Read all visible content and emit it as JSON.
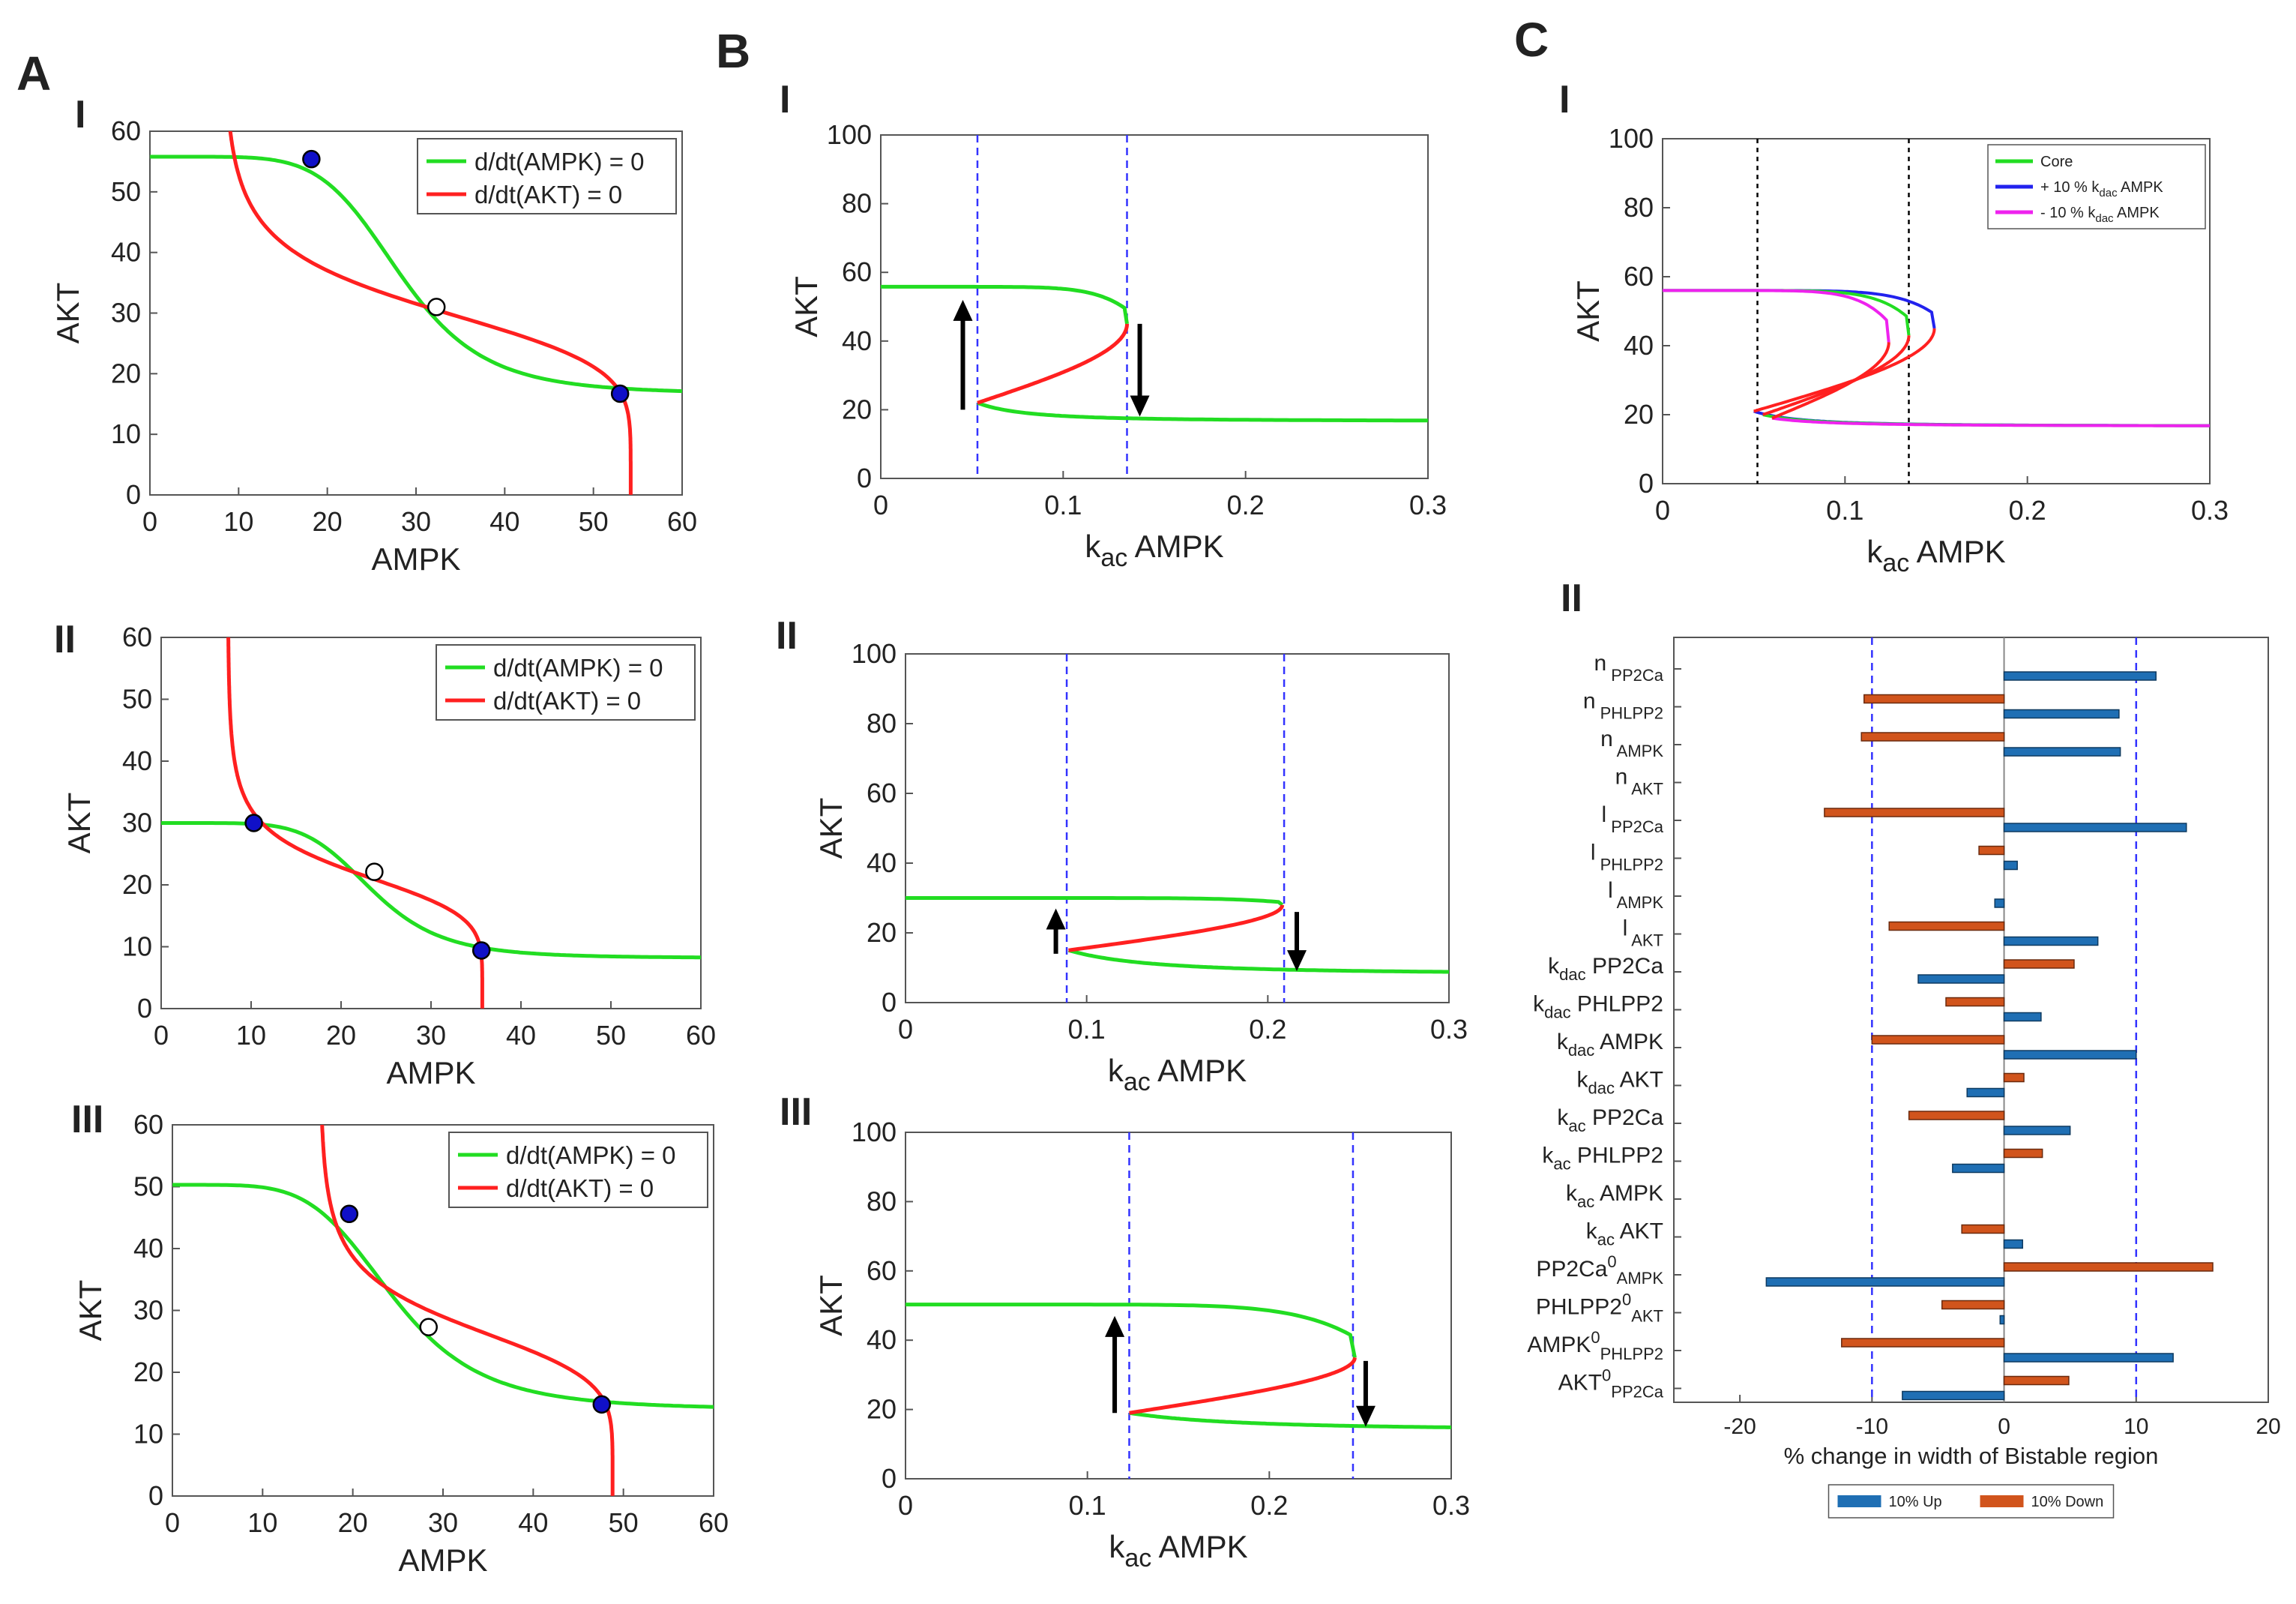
{
  "figure": {
    "panel_letters": {
      "A": "A",
      "B": "B",
      "C": "C"
    },
    "colors": {
      "nullcline_ampk": "#22dd22",
      "nullcline_akt": "#ff2020",
      "stable_point": "#1010c8",
      "bif_stable": "#22dd22",
      "bif_unstable": "#ff2020",
      "threshold_line": "#3333ff",
      "up_bar": "#1f6fb4",
      "down_bar": "#d1541c",
      "plus10": "#2222ee",
      "minus10": "#ee22ee"
    }
  },
  "chart_data": [
    {
      "id": "A-I",
      "type": "line",
      "roman": "I",
      "title": "",
      "xlabel": "AMPK",
      "ylabel": "AKT",
      "xlim": [
        0,
        60
      ],
      "ylim": [
        0,
        60
      ],
      "xticks": [
        "0",
        "10",
        "20",
        "30",
        "40",
        "50",
        "60"
      ],
      "yticks": [
        "0",
        "10",
        "20",
        "30",
        "40",
        "50",
        "60"
      ],
      "legend": [
        "d/dt(AMPK) = 0",
        "d/dt(AKT) = 0"
      ],
      "legend_position": "top-right",
      "ampk_nullcline": {
        "low": 16.7,
        "high": 55.8,
        "mid": 28.3,
        "n": 6
      },
      "akt_nullcline": {
        "ampk_min": 8.2,
        "ampk_max": 54.2,
        "mid_akt": 31.0,
        "n": 6
      },
      "stable_points": [
        [
          18.2,
          55.4
        ],
        [
          53.0,
          16.7
        ]
      ],
      "unstable_points": [
        [
          32.3,
          31.0
        ]
      ]
    },
    {
      "id": "A-II",
      "type": "line",
      "roman": "II",
      "title": "",
      "xlabel": "AMPK",
      "ylabel": "AKT",
      "xlim": [
        0,
        60
      ],
      "ylim": [
        0,
        60
      ],
      "xticks": [
        "0",
        "10",
        "20",
        "30",
        "40",
        "50",
        "60"
      ],
      "yticks": [
        "0",
        "10",
        "20",
        "30",
        "40",
        "50",
        "60"
      ],
      "legend": [
        "d/dt(AMPK) = 0",
        "d/dt(AKT) = 0"
      ],
      "legend_position": "top-right",
      "ampk_nullcline": {
        "low": 8.2,
        "high": 30.0,
        "mid": 23.5,
        "n": 6
      },
      "akt_nullcline": {
        "ampk_min": 7.4,
        "ampk_max": 35.7,
        "mid_akt": 22.0,
        "n": 6
      },
      "stable_points": [
        [
          10.3,
          30.0
        ],
        [
          35.6,
          9.4
        ]
      ],
      "unstable_points": [
        [
          23.7,
          22.1
        ]
      ]
    },
    {
      "id": "A-III",
      "type": "line",
      "roman": "III",
      "title": "",
      "xlabel": "AMPK",
      "ylabel": "AKT",
      "xlim": [
        0,
        60
      ],
      "ylim": [
        0,
        60
      ],
      "xticks": [
        "0",
        "10",
        "20",
        "30",
        "40",
        "50",
        "60"
      ],
      "yticks": [
        "0",
        "10",
        "20",
        "30",
        "40",
        "50",
        "60"
      ],
      "legend": [
        "d/dt(AMPK) = 0",
        "d/dt(AKT) = 0"
      ],
      "legend_position": "top-right",
      "ampk_nullcline": {
        "low": 14.0,
        "high": 50.3,
        "mid": 24.5,
        "n": 5
      },
      "akt_nullcline": {
        "ampk_min": 16.3,
        "ampk_max": 48.8,
        "mid_akt": 27.5,
        "n": 6
      },
      "stable_points": [
        [
          19.6,
          45.6
        ],
        [
          47.6,
          14.8
        ]
      ],
      "unstable_points": [
        [
          28.4,
          27.3
        ]
      ]
    },
    {
      "id": "B-I",
      "type": "line",
      "roman": "I",
      "xlabel_main": "k",
      "xlabel_sub": "ac",
      "xlabel_rest": " AMPK",
      "ylabel": "AKT",
      "xlim": [
        0,
        0.3
      ],
      "ylim": [
        0,
        100
      ],
      "xticks": [
        "0",
        "0.1",
        "0.2",
        "0.3"
      ],
      "yticks": [
        "0",
        "20",
        "40",
        "60",
        "80",
        "100"
      ],
      "upper": 55.8,
      "lower": 16.7,
      "sn1": [
        0.053,
        22.0
      ],
      "sn2": [
        0.135,
        45.0
      ],
      "thresholds": [
        0.053,
        0.135
      ],
      "arrows": [
        {
          "x": 0.045,
          "from": 20,
          "to": 52
        },
        {
          "x": 0.142,
          "from": 45,
          "to": 18
        }
      ]
    },
    {
      "id": "B-II",
      "type": "line",
      "roman": "II",
      "xlabel_main": "k",
      "xlabel_sub": "ac",
      "xlabel_rest": " AMPK",
      "ylabel": "AKT",
      "xlim": [
        0,
        0.3
      ],
      "ylim": [
        0,
        100
      ],
      "xticks": [
        "0",
        "0.1",
        "0.2",
        "0.3"
      ],
      "yticks": [
        "0",
        "20",
        "40",
        "60",
        "80",
        "100"
      ],
      "upper": 30.0,
      "lower": 8.2,
      "sn1": [
        0.09,
        15.0
      ],
      "sn2": [
        0.208,
        28.0
      ],
      "thresholds": [
        0.089,
        0.209
      ],
      "arrows": [
        {
          "x": 0.083,
          "from": 14,
          "to": 27
        },
        {
          "x": 0.216,
          "from": 26,
          "to": 9
        }
      ]
    },
    {
      "id": "B-III",
      "type": "line",
      "roman": "III",
      "xlabel_main": "k",
      "xlabel_sub": "ac",
      "xlabel_rest": " AMPK",
      "ylabel": "AKT",
      "xlim": [
        0,
        0.3
      ],
      "ylim": [
        0,
        100
      ],
      "xticks": [
        "0",
        "0.1",
        "0.2",
        "0.3"
      ],
      "yticks": [
        "0",
        "20",
        "40",
        "60",
        "80",
        "100"
      ],
      "upper": 50.3,
      "lower": 14.0,
      "sn1": [
        0.123,
        19.0
      ],
      "sn2": [
        0.247,
        35.0
      ],
      "thresholds": [
        0.123,
        0.246
      ],
      "arrows": [
        {
          "x": 0.115,
          "from": 19,
          "to": 47
        },
        {
          "x": 0.253,
          "from": 34,
          "to": 15
        }
      ]
    },
    {
      "id": "C-I",
      "type": "line",
      "roman": "I",
      "xlabel_main": "k",
      "xlabel_sub": "ac",
      "xlabel_rest": " AMPK",
      "ylabel": "AKT",
      "xlim": [
        0,
        0.3
      ],
      "ylim": [
        0,
        100
      ],
      "xticks": [
        "0",
        "0.1",
        "0.2",
        "0.3"
      ],
      "yticks": [
        "0",
        "20",
        "40",
        "60",
        "80",
        "100"
      ],
      "legend": [
        {
          "text": "Core",
          "color": "#22dd22"
        },
        {
          "text": "+ 10 % k",
          "sub": "dac",
          "rest": " AMPK",
          "color": "#2222ee"
        },
        {
          "text": "- 10 % k",
          "sub": "dac",
          "rest": " AMPK",
          "color": "#ee22ee"
        }
      ],
      "legend_position": "top-right",
      "thresholds": [
        0.052,
        0.135
      ],
      "series": [
        {
          "name": "Core",
          "upper": 56.0,
          "lower": 16.7,
          "sn1": [
            0.055,
            20.0
          ],
          "sn2": [
            0.135,
            43.0
          ],
          "color": "#22dd22"
        },
        {
          "name": "+ 10 % kdac AMPK",
          "upper": 56.0,
          "lower": 16.7,
          "sn1": [
            0.05,
            21.0
          ],
          "sn2": [
            0.149,
            45.0
          ],
          "color": "#2222ee"
        },
        {
          "name": "- 10 % kdac AMPK",
          "upper": 56.0,
          "lower": 16.7,
          "sn1": [
            0.06,
            19.0
          ],
          "sn2": [
            0.124,
            41.0
          ],
          "color": "#ee22ee"
        }
      ]
    },
    {
      "id": "C-II",
      "type": "bar",
      "roman": "II",
      "orientation": "horizontal",
      "xlabel": "% change in width of Bistable region",
      "xlim": [
        -25,
        20
      ],
      "xticks": [
        -20,
        -10,
        0,
        10,
        20
      ],
      "xtick_labels": [
        "-20",
        "-10",
        "0",
        "10",
        "20"
      ],
      "reference_lines": [
        -10,
        10
      ],
      "legend": [
        "10% Up",
        "10% Down"
      ],
      "legend_position": "bottom",
      "categories": [
        {
          "main": "n",
          "sub": "PP2Ca",
          "sep": " "
        },
        {
          "main": "n",
          "sub": "PHLPP2",
          "sep": " "
        },
        {
          "main": "n",
          "sub": "AMPK",
          "sep": " "
        },
        {
          "main": "n",
          "sub": "AKT",
          "sep": " "
        },
        {
          "main": "l",
          "sub": "PP2Ca",
          "sep": " "
        },
        {
          "main": "l",
          "sub": "PHLPP2",
          "sep": " "
        },
        {
          "main": "l",
          "sub": "AMPK",
          "sep": " "
        },
        {
          "main": "l",
          "sub": "AKT",
          "sep": " "
        },
        {
          "main": "k",
          "sub": "dac",
          "rest": "PP2Ca"
        },
        {
          "main": "k",
          "sub": "dac",
          "rest": "PHLPP2"
        },
        {
          "main": "k",
          "sub": "dac",
          "rest": "AMPK"
        },
        {
          "main": "k",
          "sub": "dac",
          "rest": "AKT"
        },
        {
          "main": "k",
          "sub": "ac",
          "rest": "PP2Ca"
        },
        {
          "main": "k",
          "sub": "ac",
          "rest": "PHLPP2"
        },
        {
          "main": "k",
          "sub": "ac",
          "rest": "AMPK"
        },
        {
          "main": "k",
          "sub": "ac",
          "rest": "AKT"
        },
        {
          "main": "PP2Ca",
          "sup": "0",
          "sub": "AMPK"
        },
        {
          "main": "PHLPP2",
          "sup": "0",
          "sub": "AKT"
        },
        {
          "main": "AMPK",
          "sup": "0",
          "sub": "PHLPP2"
        },
        {
          "main": "AKT",
          "sup": "0",
          "sub": "PP2Ca"
        }
      ],
      "series": [
        {
          "name": "10% Up",
          "values": [
            11.5,
            8.7,
            8.8,
            0,
            13.8,
            1.0,
            -0.7,
            7.1,
            -6.5,
            2.8,
            10.0,
            -2.8,
            5.0,
            -3.9,
            0,
            1.4,
            -18.0,
            -0.3,
            12.8,
            -7.7
          ]
        },
        {
          "name": "10% Down",
          "values": [
            0,
            -10.6,
            -10.8,
            0,
            -13.6,
            -1.9,
            0,
            -8.7,
            5.3,
            -4.4,
            -10.0,
            1.5,
            -7.2,
            2.9,
            0,
            -3.2,
            15.8,
            -4.7,
            -12.3,
            4.9
          ]
        }
      ]
    }
  ]
}
